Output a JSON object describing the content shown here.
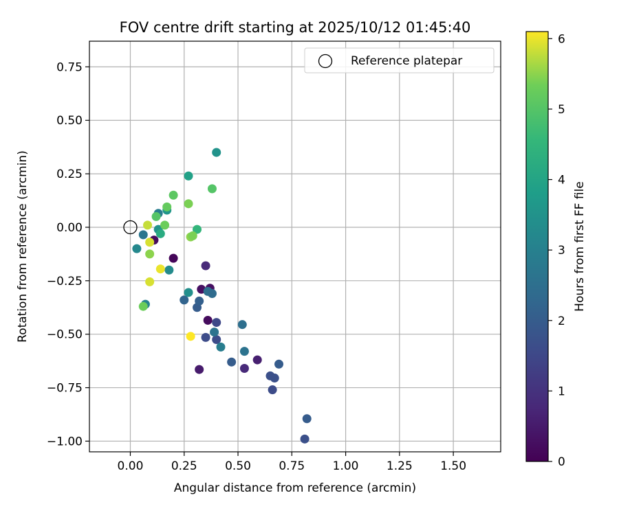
{
  "chart_data": {
    "type": "scatter",
    "title": "FOV centre drift starting at 2025/10/12 01:45:40",
    "xlabel": "Angular distance from reference (arcmin)",
    "ylabel": "Rotation from reference (arcmin)",
    "xlim": [
      -0.19,
      1.72
    ],
    "ylim": [
      -1.05,
      0.87
    ],
    "xticks": [
      0.0,
      0.25,
      0.5,
      0.75,
      1.0,
      1.25,
      1.5
    ],
    "xtick_labels": [
      "0.00",
      "0.25",
      "0.50",
      "0.75",
      "1.00",
      "1.25",
      "1.50"
    ],
    "yticks": [
      0.75,
      0.5,
      0.25,
      0.0,
      -0.25,
      -0.5,
      -0.75,
      -1.0
    ],
    "ytick_labels": [
      "0.75",
      "0.50",
      "0.25",
      "0.00",
      "−0.25",
      "−0.50",
      "−0.75",
      "−1.00"
    ],
    "grid": true,
    "legend": {
      "position": "top-right",
      "label": "Reference platepar"
    },
    "reference_point": [
      0.0,
      0.0
    ],
    "colorbar": {
      "label": "Hours from first FF file",
      "min": 0,
      "max": 6.1,
      "ticks": [
        0,
        1,
        2,
        3,
        4,
        5,
        6
      ],
      "tick_labels": [
        "0",
        "1",
        "2",
        "3",
        "4",
        "5",
        "6"
      ],
      "colormap": "viridis"
    },
    "points": [
      {
        "x": 0.2,
        "y": -0.145,
        "c": 0.1
      },
      {
        "x": 0.11,
        "y": -0.06,
        "c": 0.2
      },
      {
        "x": 0.33,
        "y": -0.29,
        "c": 0.3
      },
      {
        "x": 0.37,
        "y": -0.285,
        "c": 0.3
      },
      {
        "x": 0.36,
        "y": -0.435,
        "c": 0.2
      },
      {
        "x": 0.32,
        "y": -0.665,
        "c": 0.5
      },
      {
        "x": 0.59,
        "y": -0.62,
        "c": 0.6
      },
      {
        "x": 0.53,
        "y": -0.66,
        "c": 0.8
      },
      {
        "x": 0.35,
        "y": -0.18,
        "c": 0.8
      },
      {
        "x": 0.4,
        "y": -0.445,
        "c": 1.5
      },
      {
        "x": 0.35,
        "y": -0.515,
        "c": 1.6
      },
      {
        "x": 0.4,
        "y": -0.525,
        "c": 1.6
      },
      {
        "x": 0.66,
        "y": -0.76,
        "c": 1.6
      },
      {
        "x": 0.67,
        "y": -0.705,
        "c": 1.7
      },
      {
        "x": 0.65,
        "y": -0.695,
        "c": 1.7
      },
      {
        "x": 0.69,
        "y": -0.64,
        "c": 2.0
      },
      {
        "x": 0.81,
        "y": -0.99,
        "c": 1.7
      },
      {
        "x": 0.82,
        "y": -0.895,
        "c": 2.0
      },
      {
        "x": 0.47,
        "y": -0.63,
        "c": 2.0
      },
      {
        "x": 0.31,
        "y": -0.375,
        "c": 2.0
      },
      {
        "x": 0.32,
        "y": -0.345,
        "c": 2.1
      },
      {
        "x": 0.25,
        "y": -0.34,
        "c": 2.2
      },
      {
        "x": 0.36,
        "y": -0.3,
        "c": 2.5
      },
      {
        "x": 0.38,
        "y": -0.31,
        "c": 2.4
      },
      {
        "x": 0.52,
        "y": -0.455,
        "c": 2.5
      },
      {
        "x": 0.53,
        "y": -0.58,
        "c": 2.6
      },
      {
        "x": 0.39,
        "y": -0.49,
        "c": 2.6
      },
      {
        "x": 0.42,
        "y": -0.56,
        "c": 2.9
      },
      {
        "x": 0.06,
        "y": -0.035,
        "c": 2.7
      },
      {
        "x": 0.13,
        "y": 0.065,
        "c": 2.9
      },
      {
        "x": 0.03,
        "y": -0.1,
        "c": 3.2
      },
      {
        "x": 0.07,
        "y": -0.36,
        "c": 3.1
      },
      {
        "x": 0.18,
        "y": -0.2,
        "c": 3.3
      },
      {
        "x": 0.27,
        "y": -0.305,
        "c": 3.4
      },
      {
        "x": 0.13,
        "y": -0.01,
        "c": 3.5
      },
      {
        "x": 0.17,
        "y": 0.08,
        "c": 3.6
      },
      {
        "x": 0.4,
        "y": 0.35,
        "c": 3.5
      },
      {
        "x": 0.27,
        "y": 0.24,
        "c": 3.9
      },
      {
        "x": 0.14,
        "y": -0.03,
        "c": 4.2
      },
      {
        "x": 0.31,
        "y": -0.01,
        "c": 4.5
      },
      {
        "x": 0.38,
        "y": 0.18,
        "c": 5.0
      },
      {
        "x": 0.2,
        "y": 0.15,
        "c": 5.1
      },
      {
        "x": 0.12,
        "y": 0.05,
        "c": 5.0
      },
      {
        "x": 0.17,
        "y": 0.095,
        "c": 5.2
      },
      {
        "x": 0.16,
        "y": 0.01,
        "c": 5.3
      },
      {
        "x": 0.27,
        "y": 0.11,
        "c": 5.4
      },
      {
        "x": 0.28,
        "y": -0.045,
        "c": 5.5
      },
      {
        "x": 0.29,
        "y": -0.04,
        "c": 5.4
      },
      {
        "x": 0.06,
        "y": -0.37,
        "c": 5.3
      },
      {
        "x": 0.09,
        "y": -0.125,
        "c": 5.5
      },
      {
        "x": 0.08,
        "y": 0.01,
        "c": 5.8
      },
      {
        "x": 0.09,
        "y": -0.07,
        "c": 5.9
      },
      {
        "x": 0.09,
        "y": -0.255,
        "c": 5.9
      },
      {
        "x": 0.14,
        "y": -0.195,
        "c": 6.0
      },
      {
        "x": 0.28,
        "y": -0.51,
        "c": 6.1
      }
    ]
  }
}
